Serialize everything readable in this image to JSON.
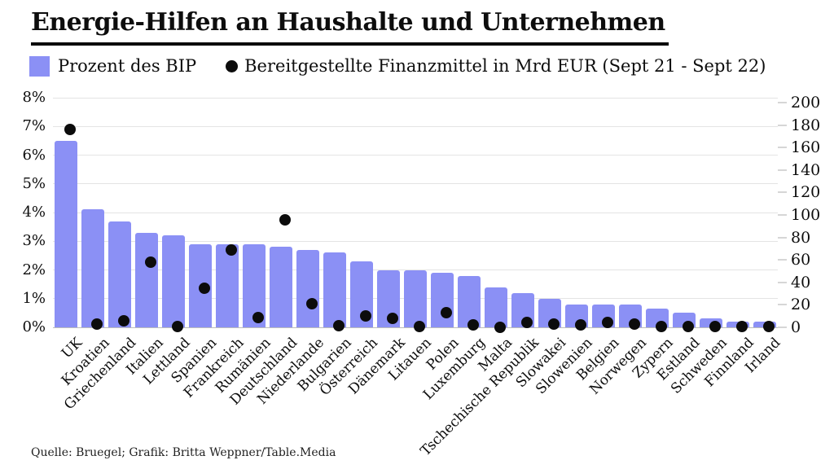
{
  "title": "Energie-Hilfen an Haushalte und Unternehmen",
  "legend": {
    "bar_label": "Prozent des BIP",
    "dot_label": "Bereitgestellte Finanzmittel in Mrd EUR (Sept 21 - Sept 22)"
  },
  "source": "Quelle: Bruegel; Grafik: Britta Weppner/Table.Media",
  "colors": {
    "bar": "#8b90f5",
    "dot": "#0c0c0c",
    "grid": "#e4e4e4",
    "axis_line": "#bdbdbd",
    "background": "#ffffff",
    "title_rule": "#0b0b0b"
  },
  "chart_data": {
    "type": "bar",
    "subtype": "dual-axis bar + dot overlay",
    "categories": [
      "UK",
      "Kroatien",
      "Griechenland",
      "Italien",
      "Lettland",
      "Spanien",
      "Frankreich",
      "Rumänien",
      "Deutschland",
      "Niederlande",
      "Bulgarien",
      "Österreich",
      "Dänemark",
      "Litauen",
      "Polen",
      "Luxemburg",
      "Malta",
      "Tschechische Republik",
      "Slowakei",
      "Slowenien",
      "Belgien",
      "Norwegen",
      "Zypern",
      "Estland",
      "Schweden",
      "Finnland",
      "Irland"
    ],
    "series": [
      {
        "name": "Prozent des BIP",
        "type": "bar",
        "axis": "left",
        "unit": "% des BIP",
        "values": [
          6.5,
          4.1,
          3.7,
          3.3,
          3.2,
          2.9,
          2.9,
          2.9,
          2.8,
          2.7,
          2.6,
          2.3,
          2.0,
          2.0,
          1.9,
          1.8,
          1.4,
          1.2,
          1.0,
          0.8,
          0.8,
          0.8,
          0.65,
          0.5,
          0.3,
          0.2,
          0.2
        ]
      },
      {
        "name": "Bereitgestellte Finanzmittel in Mrd EUR (Sept 21 - Sept 22)",
        "type": "scatter",
        "axis": "right",
        "unit": "Mrd EUR",
        "values": [
          176,
          3,
          6,
          58,
          1,
          35,
          69,
          9,
          96,
          21,
          1.5,
          10,
          8,
          1,
          13,
          2,
          0.3,
          4.5,
          3,
          2,
          4.5,
          3,
          1,
          1,
          1,
          0.5,
          0.5
        ]
      }
    ],
    "left_axis": {
      "min": 0,
      "max": 8,
      "tick_labels": [
        "8%",
        "7%",
        "6%",
        "5%",
        "4%",
        "3%",
        "2%",
        "1%",
        "0%"
      ]
    },
    "right_axis": {
      "min": 0,
      "max": 200,
      "tick_labels": [
        "200",
        "180",
        "160",
        "140",
        "120",
        "100",
        "80",
        "60",
        "40",
        "20",
        "0"
      ]
    },
    "grid": true,
    "legend_position": "top",
    "x_tick_rotation_deg": 45
  }
}
